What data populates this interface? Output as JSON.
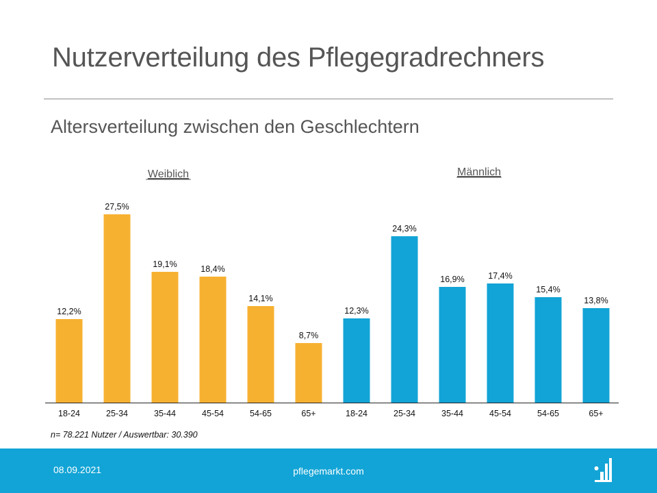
{
  "slide": {
    "title": "Nutzerverteilung des Pflegegradrechners",
    "subtitle": "Altersverteilung zwischen den Geschlechtern",
    "note": "n= 78.221 Nutzer / Auswertbar: 30.390",
    "date": "08.09.2021",
    "site": "pflegemarkt.com",
    "logo_icon": "pflegemarkt-logo-icon"
  },
  "colors": {
    "weiblich": "#f7b131",
    "maennlich": "#12a4d6",
    "footer": "#12a4d6",
    "axis": "#222222"
  },
  "chart_data": {
    "type": "bar",
    "ylim": [
      0,
      30
    ],
    "grid": false,
    "series": [
      {
        "name": "Weiblich",
        "categories": [
          "18-24",
          "25-34",
          "35-44",
          "45-54",
          "54-65",
          "65+"
        ],
        "values": [
          12.2,
          27.5,
          19.1,
          18.4,
          14.1,
          8.7
        ],
        "labels": [
          "12,2%",
          "27,5%",
          "19,1%",
          "18,4%",
          "14,1%",
          "8,7%"
        ]
      },
      {
        "name": "Männlich",
        "categories": [
          "18-24",
          "25-34",
          "35-44",
          "45-54",
          "54-65",
          "65+"
        ],
        "values": [
          12.3,
          24.3,
          16.9,
          17.4,
          15.4,
          13.8
        ],
        "labels": [
          "12,3%",
          "24,3%",
          "16,9%",
          "17,4%",
          "15,4%",
          "13,8%"
        ]
      }
    ]
  }
}
